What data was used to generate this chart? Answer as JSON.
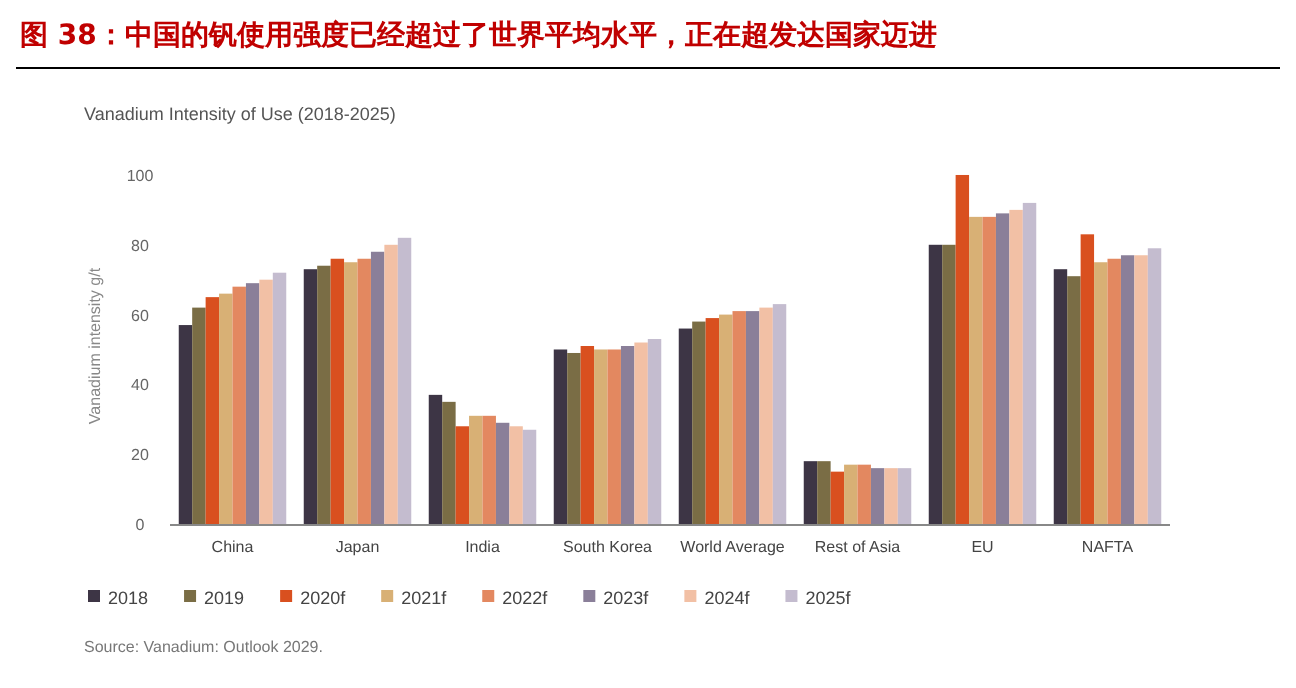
{
  "chart_data": {
    "type": "bar",
    "title": "图 38：中国的钒使用强度已经超过了世界平均水平，正在超发达国家迈进",
    "subtitle": "Vanadium Intensity of Use (2018-2025)",
    "ylabel": "Vanadium intensity g/t",
    "categories": [
      "China",
      "Japan",
      "India",
      "South Korea",
      "World Average",
      "Rest of Asia",
      "EU",
      "NAFTA"
    ],
    "ylim": [
      0,
      102
    ],
    "yticks": [
      0,
      20,
      40,
      60,
      80,
      100
    ],
    "legend": "bottom",
    "series": [
      {
        "name": "2018",
        "color": "#3d3545",
        "values": [
          57,
          73,
          37,
          50,
          56,
          18,
          80,
          73
        ]
      },
      {
        "name": "2019",
        "color": "#7a6d45",
        "values": [
          62,
          74,
          35,
          49,
          58,
          18,
          80,
          71
        ]
      },
      {
        "name": "2020f",
        "color": "#d9501f",
        "values": [
          65,
          76,
          28,
          51,
          59,
          15,
          100,
          83
        ]
      },
      {
        "name": "2021f",
        "color": "#d8b075",
        "values": [
          66,
          75,
          31,
          50,
          60,
          17,
          88,
          75
        ]
      },
      {
        "name": "2022f",
        "color": "#e38860",
        "values": [
          68,
          76,
          31,
          50,
          61,
          17,
          88,
          76
        ]
      },
      {
        "name": "2023f",
        "color": "#8a7f99",
        "values": [
          69,
          78,
          29,
          51,
          61,
          16,
          89,
          77
        ]
      },
      {
        "name": "2024f",
        "color": "#f2c0a5",
        "values": [
          70,
          80,
          28,
          52,
          62,
          16,
          90,
          77
        ]
      },
      {
        "name": "2025f",
        "color": "#c4bccf",
        "values": [
          72,
          82,
          27,
          53,
          63,
          16,
          92,
          79
        ]
      }
    ],
    "annotations": [
      "Source: Vanadium: Outlook 2029."
    ]
  }
}
